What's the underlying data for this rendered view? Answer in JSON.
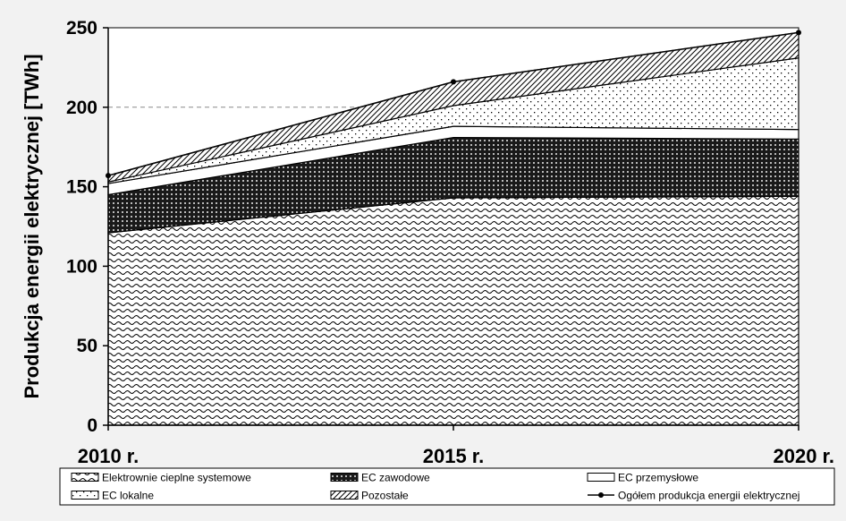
{
  "chart_data": {
    "type": "area",
    "stacked": true,
    "categories": [
      "2010 r.",
      "2015 r.",
      "2020 r."
    ],
    "ylabel": "Produkcja energii elektrycznej [TWh]",
    "ylim": [
      0,
      250
    ],
    "yticks": [
      0,
      50,
      100,
      150,
      200,
      250
    ],
    "grid": "dashed line at 200",
    "legend_position": "bottom",
    "series": [
      {
        "name": "Elektrownie cieplne systemowe",
        "values": [
          121,
          143,
          144
        ],
        "pattern": "wave"
      },
      {
        "name": "EC zawodowe",
        "values": [
          24,
          38,
          36
        ],
        "pattern": "dense-dots"
      },
      {
        "name": "EC przemysłowe",
        "values": [
          7,
          7,
          6
        ],
        "pattern": "none"
      },
      {
        "name": "EC lokalne",
        "values": [
          1,
          13,
          45
        ],
        "pattern": "sparse-dots"
      },
      {
        "name": "Pozostałe",
        "values": [
          4,
          15,
          16
        ],
        "pattern": "diagonal"
      }
    ],
    "total_line": {
      "name": "Ogółem produkcja energii elektrycznej",
      "values": [
        157,
        216,
        247
      ]
    }
  }
}
